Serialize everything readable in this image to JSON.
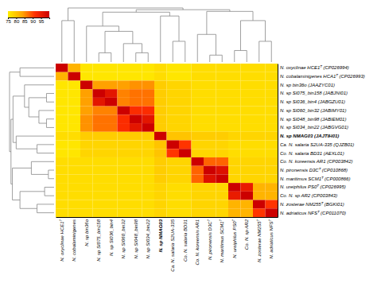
{
  "chart_data": {
    "type": "heatmap",
    "x_categories": [
      "N. oxyclinae HCE1ᵀ",
      "N. cobalaminigenes",
      "N. sp bin36o",
      "N. sp SI075_bin158",
      "N. sp SI036_bin4",
      "N. sp SI060_bin32",
      "N. sp SI048_bin98",
      "N. sp SI034_bin22",
      "N. sp NMAG03",
      "Ca. N. salaria S2UA-335",
      "Co. N. salaria BD31",
      "Co. N. koreensis AR1",
      "N. pironensis D3Cᵀ",
      "N. maritimus SCM1ᵀ",
      "N. ureiphilus PS0ᵀ",
      "Co. N. sp AR2",
      "N. zosterae NM255ᵀ",
      "N. adriaticus NFSᵀ"
    ],
    "y_categories": [
      "N. oxyclinae HCE1ᵀ (CP026994)",
      "N. cobalaminigenes HCA1ᵀ (CP026993)",
      "N. sp bin36o (JAAZYC01)",
      "N. sp SI075_bin158 (JABJNI01)",
      "N. sp SI036_bin4 (JABGZU01)",
      "N. sp SI060_bin32 (JABIMY01)",
      "N. sp SI048_bin98 (JABIEM01)",
      "N. sp SI034_bin22 (JABGVG01)",
      "N. sp NMAG03 (JAJTIH01)",
      "Ca. N. salaria S2UA-335 (QJZB01)",
      "Co. N. salaria BD31 (AEXL01)",
      "Co. N. koreensis AR1 (CP003842)",
      "N. pironensis D3Cᵀ (CP010868)",
      "N. maritimus SCM1ᵀ (CP000866)",
      "N. ureiphilus PS0ᵀ (CP026995)",
      "Co. N. sp AR2 (CP003843)",
      "N. zosterae NM255ᵀ (BGKI01)",
      "N. adriaticus NFSᵀ (CP011070)"
    ],
    "values": [
      [
        100,
        82,
        76,
        76,
        76,
        76,
        76,
        76,
        77,
        76,
        76,
        77,
        77,
        77,
        77,
        77,
        77,
        77
      ],
      [
        82,
        100,
        76,
        76,
        76,
        76,
        76,
        76,
        77,
        76,
        76,
        77,
        77,
        77,
        77,
        77,
        77,
        77
      ],
      [
        76,
        76,
        100,
        84,
        84,
        84,
        85,
        85,
        79,
        78,
        78,
        77,
        77,
        77,
        77,
        77,
        77,
        77
      ],
      [
        76,
        76,
        84,
        100,
        96,
        86,
        87,
        87,
        79,
        78,
        78,
        77,
        77,
        77,
        77,
        77,
        77,
        77
      ],
      [
        76,
        76,
        84,
        96,
        100,
        86,
        87,
        87,
        79,
        78,
        78,
        77,
        77,
        77,
        77,
        77,
        77,
        77
      ],
      [
        76,
        76,
        84,
        86,
        86,
        100,
        92,
        92,
        79,
        78,
        78,
        77,
        77,
        77,
        77,
        77,
        77,
        77
      ],
      [
        76,
        76,
        85,
        87,
        87,
        92,
        100,
        96,
        79,
        78,
        78,
        77,
        77,
        77,
        77,
        77,
        77,
        77
      ],
      [
        76,
        76,
        85,
        87,
        87,
        92,
        96,
        100,
        79,
        78,
        78,
        77,
        77,
        77,
        77,
        77,
        77,
        77
      ],
      [
        77,
        77,
        79,
        79,
        79,
        79,
        79,
        79,
        100,
        80,
        80,
        79,
        79,
        79,
        78,
        78,
        78,
        78
      ],
      [
        76,
        76,
        78,
        78,
        78,
        78,
        78,
        78,
        80,
        100,
        91,
        78,
        78,
        78,
        77,
        77,
        77,
        77
      ],
      [
        76,
        76,
        78,
        78,
        78,
        78,
        78,
        78,
        80,
        91,
        100,
        78,
        78,
        78,
        77,
        77,
        77,
        77
      ],
      [
        77,
        77,
        77,
        77,
        77,
        77,
        77,
        77,
        79,
        78,
        78,
        100,
        88,
        88,
        78,
        78,
        78,
        78
      ],
      [
        77,
        77,
        77,
        77,
        77,
        77,
        77,
        77,
        79,
        78,
        78,
        88,
        100,
        97,
        78,
        78,
        78,
        78
      ],
      [
        77,
        77,
        77,
        77,
        77,
        77,
        77,
        77,
        79,
        78,
        78,
        88,
        97,
        100,
        78,
        78,
        78,
        78
      ],
      [
        77,
        77,
        77,
        77,
        77,
        77,
        77,
        77,
        78,
        77,
        77,
        78,
        78,
        78,
        100,
        95,
        82,
        82
      ],
      [
        77,
        77,
        77,
        77,
        77,
        77,
        77,
        77,
        78,
        77,
        77,
        78,
        78,
        78,
        95,
        100,
        82,
        82
      ],
      [
        77,
        77,
        77,
        77,
        77,
        77,
        77,
        77,
        78,
        77,
        77,
        78,
        78,
        78,
        82,
        82,
        100,
        91
      ],
      [
        77,
        77,
        77,
        77,
        77,
        77,
        77,
        77,
        78,
        77,
        77,
        78,
        78,
        78,
        82,
        82,
        91,
        100
      ]
    ],
    "highlight": 8,
    "colors": [
      "#FFEE00",
      "#FFA500",
      "#FF3000",
      "#CC0000"
    ],
    "colorbar": {
      "range": [
        75,
        100
      ],
      "ticks": [
        75,
        80,
        85,
        90,
        95
      ]
    },
    "dendrogram": {
      "color": "#888888",
      "links": [
        {
          "left": 12,
          "right": 13,
          "height": 3
        },
        {
          "left": 3,
          "right": 4,
          "height": 4
        },
        {
          "left": 6,
          "right": 7,
          "height": 4
        },
        {
          "left": 14,
          "right": 15,
          "height": 5
        },
        {
          "left": 5,
          "right": 20,
          "height": 8
        },
        {
          "left": 9,
          "right": 10,
          "height": 9
        },
        {
          "left": 16,
          "right": 17,
          "height": 9
        },
        {
          "left": 11,
          "right": 18,
          "height": 12
        },
        {
          "left": 19,
          "right": 22,
          "height": 13.333333333333334
        },
        {
          "left": 2,
          "right": 26,
          "height": 15.6
        },
        {
          "left": 21,
          "right": 24,
          "height": 18
        },
        {
          "left": 0,
          "right": 1,
          "height": 18
        },
        {
          "left": 8,
          "right": 23,
          "height": 20
        },
        {
          "left": 27,
          "right": 30,
          "height": 21.666666666666668
        },
        {
          "left": 25,
          "right": 28,
          "height": 22
        },
        {
          "left": 31,
          "right": 32,
          "height": 22.746031746031747
        },
        {
          "left": 29,
          "right": 33,
          "height": 23.5
        }
      ]
    }
  }
}
